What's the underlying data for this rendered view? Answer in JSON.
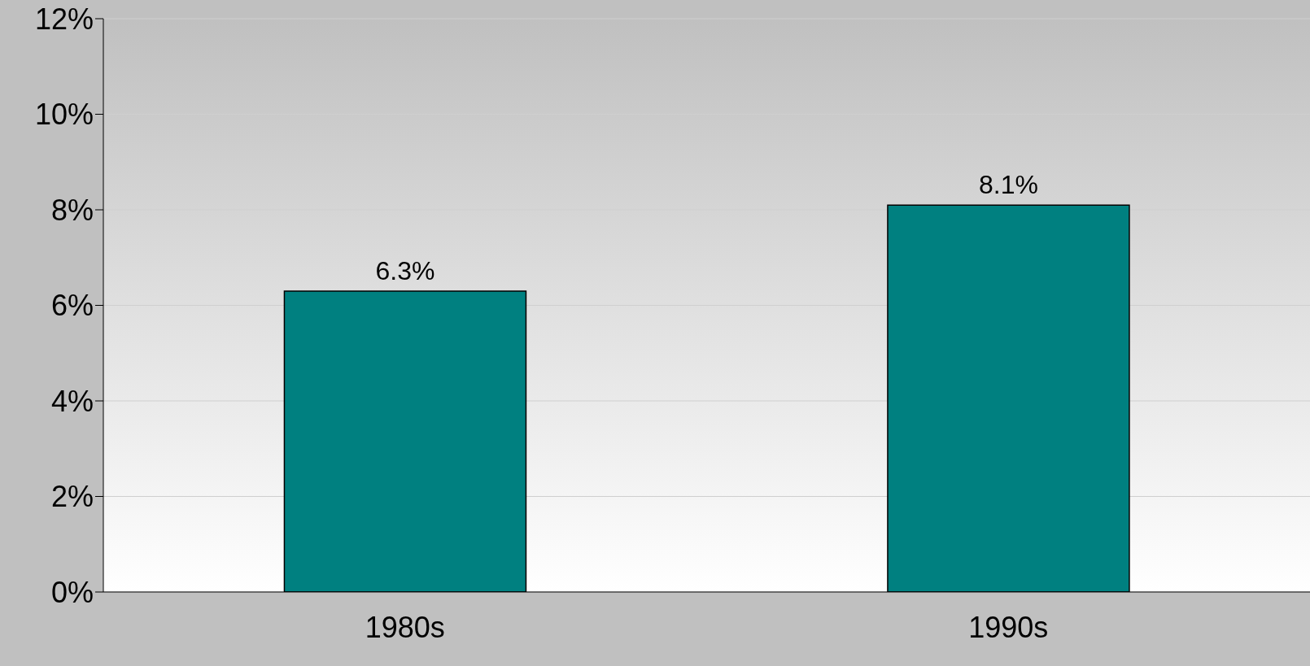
{
  "chart_data": {
    "type": "bar",
    "categories": [
      "1980s",
      "1990s"
    ],
    "values": [
      6.3,
      8.1
    ],
    "value_labels": [
      "6.3%",
      "8.1%"
    ],
    "color": "#008080",
    "ylim": [
      0,
      12
    ],
    "yticks": [
      {
        "value": 0,
        "label": "0%"
      },
      {
        "value": 2,
        "label": "2%"
      },
      {
        "value": 4,
        "label": "4%"
      },
      {
        "value": 6,
        "label": "6%"
      },
      {
        "value": 8,
        "label": "8%"
      },
      {
        "value": 10,
        "label": "10%"
      },
      {
        "value": 12,
        "label": "12%"
      }
    ],
    "grid": "y",
    "legend": false
  }
}
